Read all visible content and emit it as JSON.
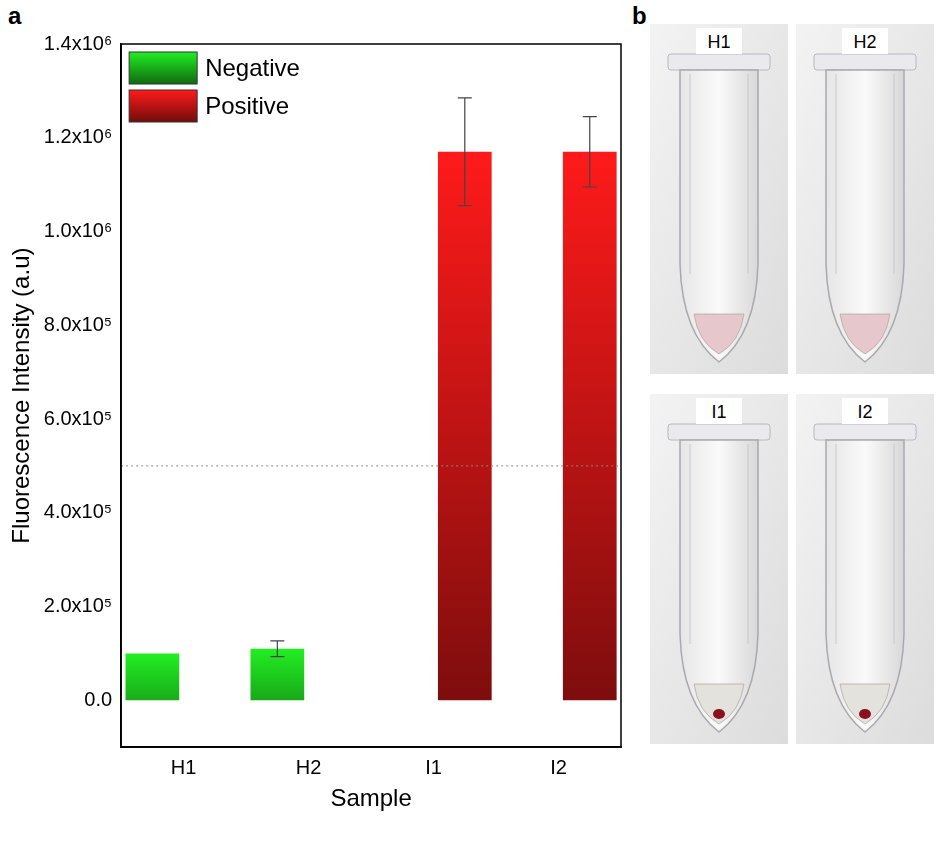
{
  "chart_data": {
    "type": "bar",
    "panel_label": "a",
    "y_label": "Fluorescence Intensity (a.u)",
    "x_label": "Sample",
    "categories": [
      "H1",
      "H2",
      "I1",
      "I2"
    ],
    "series": [
      {
        "name": "Negative",
        "color": "#22ee22",
        "values": [
          100000,
          110000,
          null,
          null
        ],
        "errors": [
          null,
          17000,
          null,
          null
        ]
      },
      {
        "name": "Positive",
        "color": "#ff1a1a",
        "values": [
          null,
          null,
          1170000,
          1170000
        ],
        "errors": [
          null,
          null,
          115000,
          75000
        ]
      }
    ],
    "threshold": 500000,
    "ylim": [
      -100000,
      1400000
    ],
    "yticks": [
      {
        "value": 0,
        "label": "0.0"
      },
      {
        "value": 200000,
        "label": "2.0x10⁵"
      },
      {
        "value": 400000,
        "label": "4.0x10⁵"
      },
      {
        "value": 600000,
        "label": "6.0x10⁵"
      },
      {
        "value": 800000,
        "label": "8.0x10⁵"
      },
      {
        "value": 1000000,
        "label": "1.0x10⁶"
      },
      {
        "value": 1200000,
        "label": "1.2x10⁶"
      },
      {
        "value": 1400000,
        "label": "1.4x10⁶"
      }
    ],
    "grid": false,
    "legend": "upper left"
  },
  "photo_panel": {
    "panel_label": "b",
    "tubes": [
      {
        "label": "H1",
        "pellet": false
      },
      {
        "label": "H2",
        "pellet": false
      },
      {
        "label": "I1",
        "pellet": true
      },
      {
        "label": "I2",
        "pellet": true
      }
    ]
  }
}
